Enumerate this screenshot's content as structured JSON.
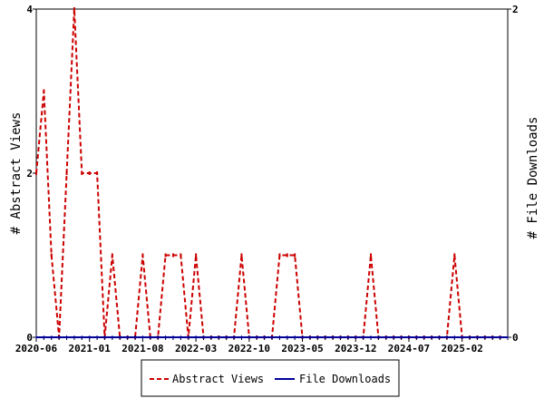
{
  "chart_data": {
    "type": "line",
    "xlabels": [
      "2020-06",
      "2021-01",
      "2021-08",
      "2022-03",
      "2022-10",
      "2023-05",
      "2023-12",
      "2024-07",
      "2025-02"
    ],
    "months_total": 62,
    "left_axis": {
      "title": "# Abstract Views",
      "ylim": [
        0,
        4
      ],
      "ticks": [
        "0",
        "2",
        "4"
      ]
    },
    "right_axis": {
      "title": "# File Downloads",
      "ylim": [
        0,
        2
      ],
      "ticks": [
        "0",
        "2"
      ]
    },
    "series": [
      {
        "name": "Abstract Views",
        "axis": "left",
        "color": "#cc0000",
        "style": "dashed",
        "values": [
          2,
          3,
          1,
          0,
          2,
          4,
          2,
          2,
          2,
          0,
          1,
          0,
          0,
          0,
          1,
          0,
          0,
          1,
          1,
          1,
          0,
          1,
          0,
          0,
          0,
          0,
          0,
          1,
          0,
          0,
          0,
          0,
          1,
          1,
          1,
          0,
          0,
          0,
          0,
          0,
          0,
          0,
          0,
          0,
          1,
          0,
          0,
          0,
          0,
          0,
          0,
          0,
          0,
          0,
          0,
          1,
          0,
          0,
          0,
          0,
          0,
          0
        ]
      },
      {
        "name": "File Downloads",
        "axis": "right",
        "color": "#000099",
        "style": "solid",
        "values": [
          0,
          0,
          0,
          0,
          0,
          0,
          0,
          0,
          0,
          0,
          0,
          0,
          0,
          0,
          0,
          0,
          0,
          0,
          0,
          0,
          0,
          0,
          0,
          0,
          0,
          0,
          0,
          0,
          0,
          0,
          0,
          0,
          0,
          0,
          0,
          0,
          0,
          0,
          0,
          0,
          0,
          0,
          0,
          0,
          0,
          0,
          0,
          0,
          0,
          0,
          0,
          0,
          0,
          0,
          0,
          0,
          0,
          0,
          0,
          0,
          0,
          0
        ]
      }
    ],
    "legend": {
      "position": "bottom",
      "items": [
        "Abstract Views",
        "File Downloads"
      ]
    }
  }
}
